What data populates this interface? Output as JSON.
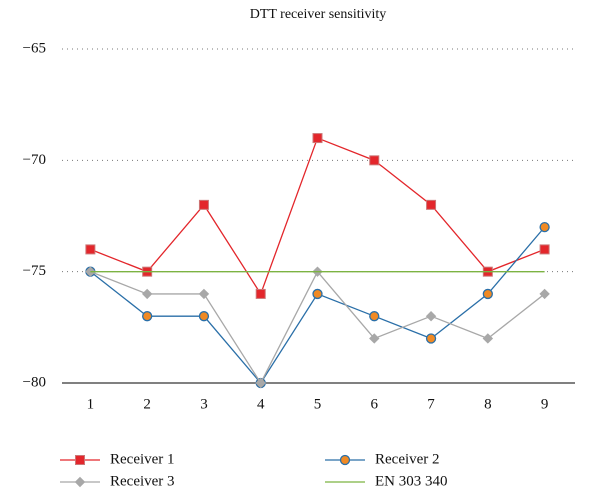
{
  "chart_data": {
    "type": "line",
    "title": "DTT receiver sensitivity",
    "categories": [
      "1",
      "2",
      "3",
      "4",
      "5",
      "6",
      "7",
      "8",
      "9"
    ],
    "series": [
      {
        "name": "Receiver 1",
        "color": "#e3262b",
        "marker": "square",
        "marker_color": "#e3262b",
        "values": [
          -74,
          -75,
          -72,
          -76,
          -69,
          -70,
          -72,
          -75,
          -74
        ]
      },
      {
        "name": "Receiver 2",
        "color": "#2a6fa8",
        "marker": "circle",
        "marker_color": "#f08a24",
        "values": [
          -75,
          -77,
          -77,
          -80,
          -76,
          -77,
          -78,
          -76,
          -73
        ]
      },
      {
        "name": "Receiver 3",
        "color": "#a8a8a8",
        "marker": "diamond",
        "marker_color": "#a8a8a8",
        "values": [
          -75,
          -76,
          -76,
          -80,
          -75,
          -78,
          -77,
          -78,
          -76
        ]
      },
      {
        "name": "EN 303 340",
        "color": "#7cb342",
        "marker": "none",
        "marker_color": "#7cb342",
        "values": [
          -75,
          -75,
          -75,
          -75,
          -75,
          -75,
          -75,
          -75,
          -75
        ]
      }
    ],
    "ylim": [
      -80,
      -65
    ],
    "yticks": [
      {
        "value": -80,
        "label": "−80"
      },
      {
        "value": -75,
        "label": "−75"
      },
      {
        "value": -70,
        "label": "−70"
      },
      {
        "value": -65,
        "label": "−65"
      }
    ],
    "grid": true
  }
}
